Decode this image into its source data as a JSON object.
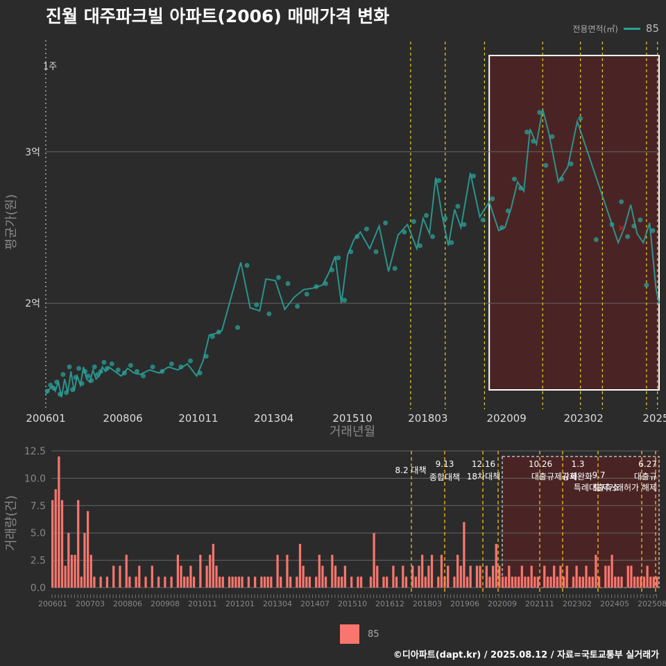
{
  "title": "진월 대주파크빌 아파트(2006) 매매가격 변화",
  "legend": {
    "title": "전용면적(㎡)",
    "series_name": "85",
    "color": "#2aa198"
  },
  "bar_legend": {
    "label": "85",
    "color": "#f8766d"
  },
  "footer": "©디아파트(dapt.kr) / 2025.08.12 / 자료=국토교통부 실거래가",
  "chart_data": [
    {
      "type": "scatter",
      "ylabel": "평균가(원)",
      "xlabel": "거래년월",
      "x_ticks": [
        "200601",
        "200806",
        "201011",
        "201304",
        "201510",
        "201803",
        "202009",
        "202302",
        "2025"
      ],
      "y_ticks": [
        "2억",
        "3억"
      ],
      "ylim": [
        13000,
        37500
      ],
      "y_unit": "만원",
      "corner_label": "1주",
      "line_x": [
        2006.0,
        2006.1,
        2006.2,
        2006.3,
        2006.4,
        2006.5,
        2006.6,
        2006.7,
        2006.8,
        2006.9,
        2007.0,
        2007.1,
        2007.2,
        2007.3,
        2007.4,
        2007.5,
        2007.6,
        2007.7,
        2007.8,
        2007.9,
        2008.0,
        2008.2,
        2008.4,
        2008.6,
        2008.8,
        2009.0,
        2009.3,
        2009.6,
        2009.9,
        2010.2,
        2010.5,
        2010.8,
        2011.0,
        2011.2,
        2011.4,
        2011.6,
        2012.2,
        2012.5,
        2012.8,
        2013.0,
        2013.3,
        2013.6,
        2013.9,
        2014.2,
        2014.5,
        2014.8,
        2015.0,
        2015.2,
        2015.4,
        2015.6,
        2015.8,
        2016.0,
        2016.3,
        2016.6,
        2016.9,
        2017.2,
        2017.5,
        2017.8,
        2018.0,
        2018.2,
        2018.4,
        2018.6,
        2018.8,
        2019.0,
        2019.2,
        2019.5,
        2019.8,
        2020.1,
        2020.4,
        2020.6,
        2020.8,
        2021.0,
        2021.2,
        2021.4,
        2021.6,
        2021.8,
        2022.0,
        2022.3,
        2022.6,
        2022.9,
        2024.2,
        2024.4,
        2024.6,
        2024.8,
        2025.0,
        2025.2,
        2025.4,
        2025.5
      ],
      "line_y": [
        14000,
        14300,
        14500,
        14200,
        14800,
        13800,
        15000,
        14100,
        15500,
        14200,
        15200,
        14600,
        15800,
        15000,
        14800,
        15600,
        15000,
        15200,
        15800,
        15500,
        15800,
        15500,
        15200,
        15700,
        15400,
        15300,
        15600,
        15400,
        15800,
        15600,
        16000,
        15200,
        16200,
        17900,
        18000,
        18200,
        22700,
        19700,
        19500,
        21600,
        21500,
        19600,
        20400,
        20900,
        21000,
        21200,
        22000,
        23100,
        20000,
        23200,
        24200,
        24700,
        23600,
        25100,
        22100,
        24500,
        25200,
        23600,
        25600,
        24600,
        28300,
        25800,
        23800,
        26200,
        25000,
        28600,
        25700,
        26700,
        24800,
        25000,
        26300,
        28000,
        27400,
        31500,
        30500,
        32800,
        31200,
        28000,
        29000,
        32000,
        24000,
        25000,
        26500,
        24600,
        24000,
        25300,
        21000,
        20000
      ],
      "points_x": [
        2006.05,
        2006.15,
        2006.25,
        2006.35,
        2006.45,
        2006.55,
        2006.65,
        2006.75,
        2006.85,
        2006.95,
        2007.05,
        2007.15,
        2007.25,
        2007.35,
        2007.45,
        2007.55,
        2007.65,
        2007.75,
        2007.85,
        2007.95,
        2008.1,
        2008.3,
        2008.5,
        2008.7,
        2008.9,
        2009.1,
        2009.4,
        2009.7,
        2010.0,
        2010.3,
        2010.6,
        2010.9,
        2011.1,
        2011.3,
        2011.5,
        2012.1,
        2012.4,
        2012.7,
        2013.1,
        2013.4,
        2013.7,
        2014.0,
        2014.3,
        2014.6,
        2014.9,
        2015.1,
        2015.3,
        2015.5,
        2015.7,
        2015.9,
        2016.2,
        2016.5,
        2016.8,
        2017.1,
        2017.4,
        2017.7,
        2017.9,
        2018.1,
        2018.3,
        2018.5,
        2018.7,
        2018.9,
        2019.1,
        2019.3,
        2019.6,
        2019.9,
        2020.2,
        2020.5,
        2020.7,
        2020.9,
        2021.1,
        2021.3,
        2021.5,
        2021.7,
        2021.9,
        2022.1,
        2022.4,
        2022.7,
        2023.0,
        2023.5,
        2024.0,
        2024.3,
        2024.5,
        2024.7,
        2024.9,
        2025.1,
        2025.3
      ],
      "points_y": [
        14200,
        14600,
        14400,
        14800,
        14000,
        15300,
        14100,
        15800,
        14300,
        15100,
        15700,
        14700,
        15500,
        15200,
        14900,
        15800,
        15300,
        15500,
        16100,
        15700,
        16000,
        15600,
        15400,
        15900,
        15500,
        15200,
        15800,
        15500,
        16000,
        15800,
        16200,
        15400,
        16500,
        17800,
        18100,
        18400,
        22500,
        19900,
        19300,
        21700,
        21300,
        19800,
        20600,
        21100,
        21300,
        22200,
        23000,
        20200,
        23400,
        24400,
        24900,
        23400,
        25300,
        22300,
        24700,
        25400,
        23800,
        25800,
        24400,
        28100,
        25600,
        24000,
        26400,
        25200,
        28400,
        25500,
        26900,
        25000,
        26100,
        28200,
        27600,
        31300,
        30700,
        32600,
        29100,
        31000,
        28200,
        29200,
        32200,
        24200,
        25200,
        26700,
        24400,
        25100,
        25500,
        21200,
        24800
      ],
      "marker_x": 2024.3,
      "marker_y": 25000
    },
    {
      "type": "bar",
      "ylabel": "거래량(건)",
      "y_ticks": [
        "0.0",
        "2.5",
        "5.0",
        "7.5",
        "10.0",
        "12.5"
      ],
      "ylim": [
        0,
        12.5
      ],
      "x_ticks": [
        "200601",
        "200703",
        "200806",
        "200908",
        "201011",
        "201201",
        "201304",
        "201407",
        "201510",
        "201612",
        "201803",
        "201906",
        "202009",
        "202111",
        "202302",
        "202405",
        "202508"
      ],
      "values": [
        8,
        9,
        12,
        8,
        2,
        5,
        3,
        3,
        8,
        1,
        5,
        7,
        3,
        1,
        0,
        1,
        0,
        1,
        0,
        2,
        0,
        2,
        0,
        3,
        1,
        0,
        1,
        2,
        0,
        1,
        0,
        2,
        0,
        1,
        0,
        1,
        0,
        1,
        0,
        3,
        2,
        1,
        1,
        2,
        1,
        0,
        3,
        0,
        2,
        3,
        4,
        2,
        1,
        1,
        0,
        1,
        1,
        1,
        1,
        1,
        0,
        1,
        0,
        1,
        0,
        1,
        1,
        1,
        1,
        0,
        3,
        1,
        0,
        3,
        1,
        0,
        1,
        4,
        2,
        1,
        1,
        0,
        1,
        3,
        2,
        1,
        0,
        3,
        2,
        1,
        1,
        2,
        0,
        1,
        0,
        1,
        1,
        0,
        0,
        1,
        5,
        2,
        0,
        1,
        1,
        0,
        2,
        1,
        0,
        2,
        1,
        0,
        2,
        1,
        2,
        3,
        1,
        2,
        3,
        0,
        1,
        3,
        1,
        2,
        0,
        1,
        3,
        2,
        6,
        1,
        2,
        0,
        2,
        2,
        0,
        2,
        1,
        2,
        4,
        2,
        1,
        1,
        2,
        1,
        1,
        1,
        2,
        1,
        1,
        2,
        1,
        1,
        0,
        2,
        1,
        1,
        2,
        1,
        2,
        1,
        2,
        0,
        1,
        2,
        1,
        1,
        2,
        1,
        1,
        3,
        1,
        0,
        2,
        2,
        3,
        1,
        1,
        1,
        0,
        2,
        2,
        1,
        1,
        1,
        1,
        2,
        1,
        1,
        1
      ],
      "policies": [
        {
          "date": "8.2 대책",
          "label": ""
        },
        {
          "date": "9.13",
          "label": "종합대책"
        },
        {
          "date": "12.16",
          "label": "18차대책"
        },
        {
          "date": "10.26",
          "label": "대출규제강화"
        },
        {
          "date": "1.3",
          "label": "규제완화"
        },
        {
          "date": "9.7",
          "label": "특례대출축소"
        },
        {
          "date": "토지거래허가 해제",
          "label": ""
        },
        {
          "date": "6.27",
          "label": "대출규"
        }
      ]
    }
  ]
}
